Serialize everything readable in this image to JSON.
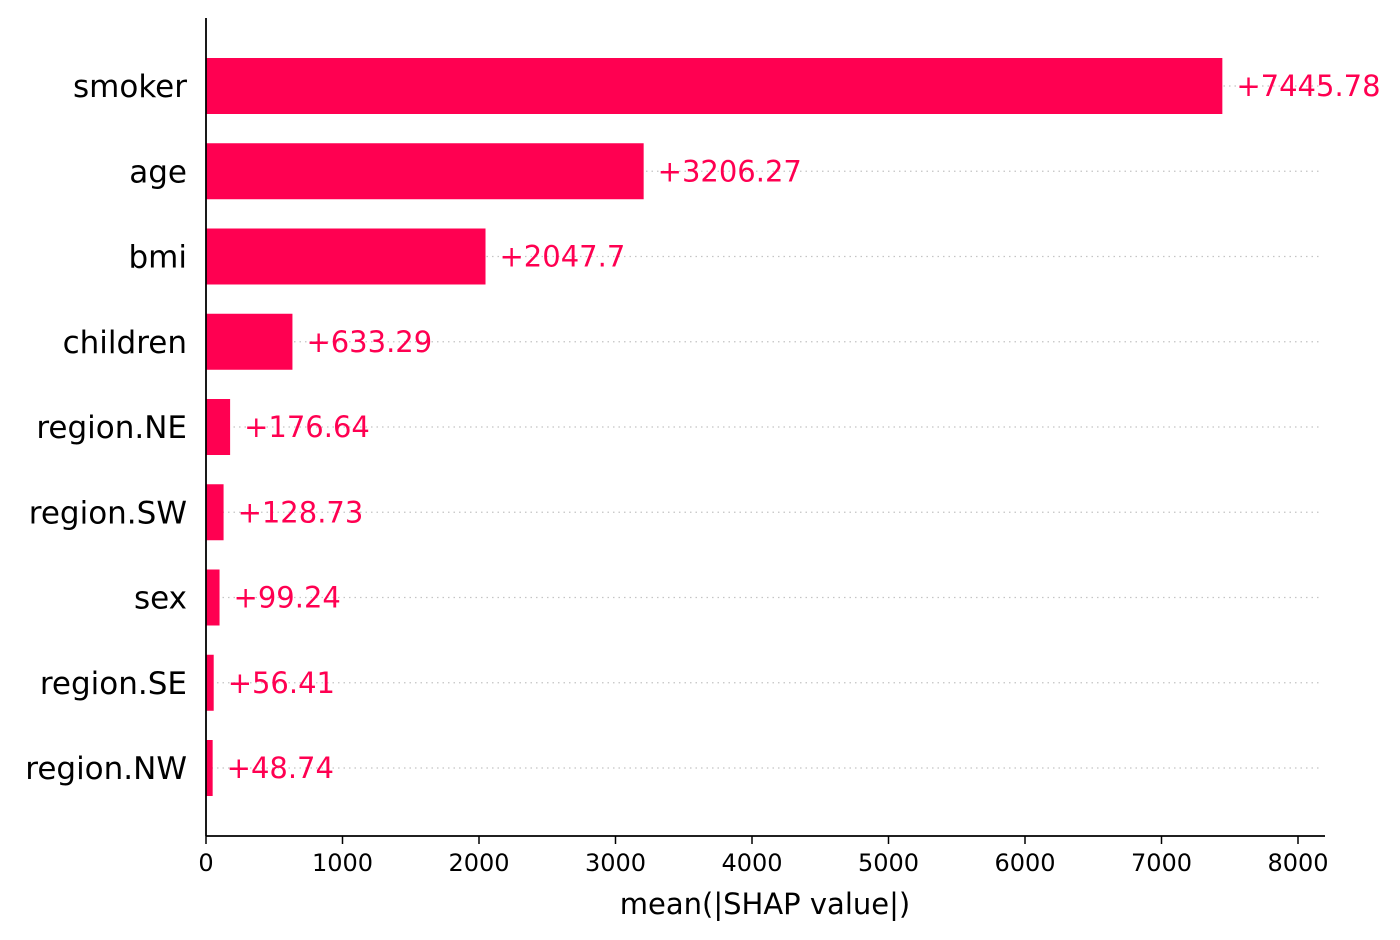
{
  "chart_data": {
    "type": "bar",
    "orientation": "horizontal",
    "categories": [
      "smoker",
      "age",
      "bmi",
      "children",
      "region.NE",
      "region.SW",
      "sex",
      "region.SE",
      "region.NW"
    ],
    "values": [
      7445.78,
      3206.27,
      2047.7,
      633.29,
      176.64,
      128.73,
      99.24,
      56.41,
      48.74
    ],
    "value_labels": [
      "+7445.78",
      "+3206.27",
      "+2047.7",
      "+633.29",
      "+176.64",
      "+128.73",
      "+99.24",
      "+56.41",
      "+48.74"
    ],
    "xlabel": "mean(|SHAP value|)",
    "xlim": [
      0,
      8200
    ],
    "xticks": [
      0,
      1000,
      2000,
      3000,
      4000,
      5000,
      6000,
      7000,
      8000
    ],
    "xtick_labels": [
      "0",
      "1000",
      "2000",
      "3000",
      "4000",
      "5000",
      "6000",
      "7000",
      "8000"
    ],
    "grid": "dotted horizontal row guides",
    "bar_color": "#ff0051",
    "label_color": "#ff0051"
  }
}
